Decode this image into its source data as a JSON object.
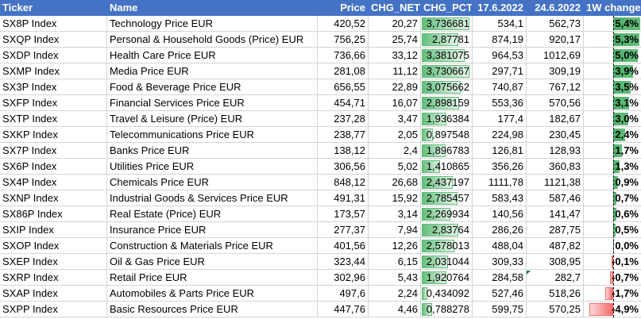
{
  "headers": {
    "ticker": "Ticker",
    "name": "Name",
    "price": "Price",
    "chg_net": "CHG_NET",
    "chg_pct": "CHG_PCT_",
    "date1": "17.6.2022",
    "date2": "24.6.2022",
    "week_change": "1W change"
  },
  "rows": [
    {
      "ticker": "SX8P Index",
      "name": "Technology Price EUR",
      "price": "420,52",
      "chg_net": "20,27",
      "chg_pct": "3,736681",
      "date1": "534,1",
      "date2": "562,73",
      "week_change": "5,4%",
      "chg_pct_value": 3.736681,
      "week_change_value": 5.4
    },
    {
      "ticker": "SXQP Index",
      "name": "Personal & Household Goods (Price) EUR",
      "price": "756,25",
      "chg_net": "25,74",
      "chg_pct": "2,87781",
      "date1": "874,19",
      "date2": "920,17",
      "week_change": "5,3%",
      "chg_pct_value": 2.87781,
      "week_change_value": 5.3
    },
    {
      "ticker": "SXDP Index",
      "name": "Health Care Price EUR",
      "price": "736,66",
      "chg_net": "33,12",
      "chg_pct": "3,381075",
      "date1": "964,53",
      "date2": "1012,69",
      "week_change": "5,0%",
      "chg_pct_value": 3.381075,
      "week_change_value": 5.0
    },
    {
      "ticker": "SXMP Index",
      "name": "Media Price EUR",
      "price": "281,08",
      "chg_net": "11,12",
      "chg_pct": "3,730667",
      "date1": "297,71",
      "date2": "309,19",
      "week_change": "3,9%",
      "chg_pct_value": 3.730667,
      "week_change_value": 3.9
    },
    {
      "ticker": "SX3P Index",
      "name": "Food & Beverage Price EUR",
      "price": "656,55",
      "chg_net": "22,89",
      "chg_pct": "3,075662",
      "date1": "740,87",
      "date2": "767,12",
      "week_change": "3,5%",
      "chg_pct_value": 3.075662,
      "week_change_value": 3.5
    },
    {
      "ticker": "SXFP Index",
      "name": "Financial Services Price EUR",
      "price": "454,71",
      "chg_net": "16,07",
      "chg_pct": "2,898159",
      "date1": "553,36",
      "date2": "570,56",
      "week_change": "3,1%",
      "chg_pct_value": 2.898159,
      "week_change_value": 3.1
    },
    {
      "ticker": "SXTP Index",
      "name": "Travel & Leisure (Price) EUR",
      "price": "237,28",
      "chg_net": "3,47",
      "chg_pct": "1,936384",
      "date1": "177,4",
      "date2": "182,67",
      "week_change": "3,0%",
      "chg_pct_value": 1.936384,
      "week_change_value": 3.0
    },
    {
      "ticker": "SXKP Index",
      "name": "Telecommunications Price EUR",
      "price": "238,77",
      "chg_net": "2,05",
      "chg_pct": "0,897548",
      "date1": "224,98",
      "date2": "230,45",
      "week_change": "2,4%",
      "chg_pct_value": 0.897548,
      "week_change_value": 2.4
    },
    {
      "ticker": "SX7P Index",
      "name": "Banks Price EUR",
      "price": "138,12",
      "chg_net": "2,4",
      "chg_pct": "1,896783",
      "date1": "126,81",
      "date2": "128,93",
      "week_change": "1,7%",
      "chg_pct_value": 1.896783,
      "week_change_value": 1.7
    },
    {
      "ticker": "SX6P Index",
      "name": "Utilities Price EUR",
      "price": "306,56",
      "chg_net": "5,02",
      "chg_pct": "1,410865",
      "date1": "356,26",
      "date2": "360,83",
      "week_change": "1,3%",
      "chg_pct_value": 1.410865,
      "week_change_value": 1.3
    },
    {
      "ticker": "SX4P Index",
      "name": "Chemicals Price EUR",
      "price": "848,12",
      "chg_net": "26,68",
      "chg_pct": "2,437197",
      "date1": "1111,78",
      "date2": "1121,38",
      "week_change": "0,9%",
      "chg_pct_value": 2.437197,
      "week_change_value": 0.9
    },
    {
      "ticker": "SXNP Index",
      "name": "Industrial Goods & Services Price EUR",
      "price": "491,31",
      "chg_net": "15,92",
      "chg_pct": "2,785457",
      "date1": "583,43",
      "date2": "587,46",
      "week_change": "0,7%",
      "chg_pct_value": 2.785457,
      "week_change_value": 0.7
    },
    {
      "ticker": "SX86P Index",
      "name": "Real Estate (Price) EUR",
      "price": "173,57",
      "chg_net": "3,14",
      "chg_pct": "2,269934",
      "date1": "140,56",
      "date2": "141,47",
      "week_change": "0,6%",
      "chg_pct_value": 2.269934,
      "week_change_value": 0.6
    },
    {
      "ticker": "SXIP Index",
      "name": "Insurance Price EUR",
      "price": "277,37",
      "chg_net": "7,94",
      "chg_pct": "2,83764",
      "date1": "286,26",
      "date2": "287,75",
      "week_change": "0,5%",
      "chg_pct_value": 2.83764,
      "week_change_value": 0.5
    },
    {
      "ticker": "SXOP Index",
      "name": "Construction & Materials Price EUR",
      "price": "401,56",
      "chg_net": "12,26",
      "chg_pct": "2,578013",
      "date1": "488,04",
      "date2": "487,82",
      "week_change": "0,0%",
      "chg_pct_value": 2.578013,
      "week_change_value": 0.0
    },
    {
      "ticker": "SXEP Index",
      "name": "Oil & Gas Price EUR",
      "price": "323,44",
      "chg_net": "6,15",
      "chg_pct": "2,031044",
      "date1": "309,33",
      "date2": "308,95",
      "week_change": "-0,1%",
      "chg_pct_value": 2.031044,
      "week_change_value": -0.1
    },
    {
      "ticker": "SXRP Index",
      "name": "Retail Price EUR",
      "price": "302,96",
      "chg_net": "5,43",
      "chg_pct": "1,920764",
      "date1": "284,58",
      "date2": "282,7",
      "week_change": "-0,7%",
      "chg_pct_value": 1.920764,
      "week_change_value": -0.7
    },
    {
      "ticker": "SXAP Index",
      "name": "Automobiles & Parts Price EUR",
      "price": "497,6",
      "chg_net": "2,24",
      "chg_pct": "0,434092",
      "date1": "527,46",
      "date2": "518,26",
      "week_change": "-1,7%",
      "chg_pct_value": 0.434092,
      "week_change_value": -1.7
    },
    {
      "ticker": "SXPP Index",
      "name": "Basic Resources Price EUR",
      "price": "447,76",
      "chg_net": "4,46",
      "chg_pct": "0,788278",
      "date1": "599,75",
      "date2": "570,25",
      "week_change": "-4,9%",
      "chg_pct_value": 0.788278,
      "week_change_value": -4.9
    }
  ],
  "colors": {
    "header_bg": "#4472c4",
    "positive_bar": "#63be7b",
    "negative_bar": "#f8696b"
  }
}
